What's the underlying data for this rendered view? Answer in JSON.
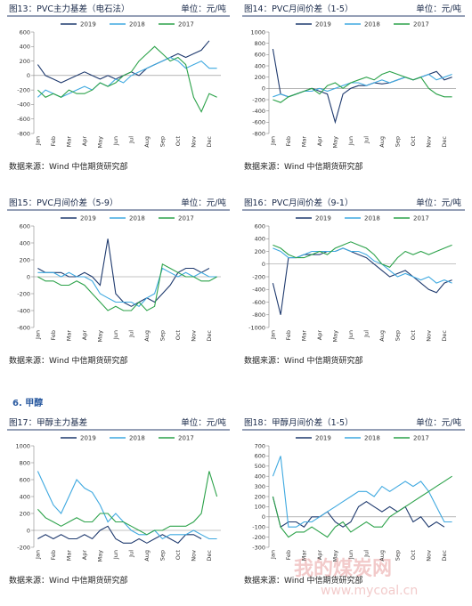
{
  "section_title": "6. 甲醇",
  "watermark": [
    "我的煤炭网",
    "www.mycoal.cn"
  ],
  "chart_data": [
    {
      "type": "line",
      "title": "图13：PVC主力基差（电石法）",
      "unit": "单位：元/吨",
      "source": "数据来源：Wind 中信期货研究部",
      "categories": [
        "Jan",
        null,
        "Feb",
        null,
        "Mar",
        null,
        "Apr",
        null,
        "May",
        null,
        "Jun",
        null,
        "Jul",
        null,
        "Aug",
        null,
        "Sep",
        null,
        "Oct",
        null,
        "Nov",
        null,
        "Dec",
        null
      ],
      "series": [
        {
          "name": "2019",
          "color": "#1f3a6e",
          "values": [
            150,
            0,
            -50,
            -100,
            -50,
            0,
            50,
            0,
            -50,
            0,
            -50,
            0,
            50,
            0,
            100,
            150,
            200,
            250,
            300,
            250,
            300,
            350,
            480,
            null
          ]
        },
        {
          "name": "2018",
          "color": "#3fa9e0",
          "values": [
            -300,
            -200,
            -250,
            -300,
            -250,
            -200,
            -150,
            -200,
            -100,
            -150,
            -50,
            -100,
            0,
            50,
            100,
            150,
            200,
            250,
            200,
            100,
            150,
            200,
            100,
            100
          ]
        },
        {
          "name": "2017",
          "color": "#2ca24a",
          "values": [
            -200,
            -300,
            -250,
            -300,
            -200,
            -250,
            -250,
            -200,
            -100,
            -150,
            -100,
            0,
            50,
            200,
            300,
            400,
            300,
            200,
            250,
            150,
            -300,
            -500,
            -250,
            -300
          ]
        }
      ],
      "ylim": [
        -800,
        600
      ],
      "yticks": [
        -800,
        -600,
        -400,
        -200,
        0,
        200,
        400,
        600
      ]
    },
    {
      "type": "line",
      "title": "图14：PVC月间价差（1-5）",
      "unit": "单位：元/吨",
      "source": "数据来源：Wind 中信期货研究部",
      "categories": [
        "Jan",
        null,
        "Feb",
        null,
        "Mar",
        null,
        "Apr",
        null,
        "May",
        null,
        "Jun",
        null,
        "Jul",
        null,
        "Aug",
        null,
        "Sep",
        null,
        "Oct",
        null,
        "Nov",
        null,
        "Dec",
        null
      ],
      "series": [
        {
          "name": "2019",
          "color": "#1f3a6e",
          "values": [
            700,
            -100,
            -150,
            -100,
            -50,
            0,
            -50,
            -100,
            -600,
            -100,
            0,
            50,
            50,
            100,
            80,
            100,
            150,
            200,
            150,
            200,
            250,
            300,
            150,
            200
          ]
        },
        {
          "name": "2018",
          "color": "#3fa9e0",
          "values": [
            -150,
            -100,
            -150,
            -100,
            -50,
            -50,
            0,
            -50,
            0,
            50,
            100,
            100,
            50,
            100,
            150,
            100,
            150,
            200,
            150,
            200,
            250,
            150,
            200,
            250
          ]
        },
        {
          "name": "2017",
          "color": "#2ca24a",
          "values": [
            -200,
            -250,
            -150,
            -100,
            -50,
            0,
            -100,
            50,
            100,
            0,
            100,
            150,
            200,
            150,
            250,
            300,
            250,
            200,
            150,
            200,
            0,
            -100,
            -150,
            -150
          ]
        }
      ],
      "ylim": [
        -800,
        1000
      ],
      "yticks": [
        -800,
        -600,
        -400,
        -200,
        0,
        200,
        400,
        600,
        800,
        1000
      ]
    },
    {
      "type": "line",
      "title": "图15：PVC月间价差（5-9）",
      "unit": "单位：元/吨",
      "source": "数据来源：Wind 中信期货研究部",
      "categories": [
        "Jan",
        null,
        "Feb",
        null,
        "Mar",
        null,
        "Apr",
        null,
        "May",
        null,
        "Jun",
        null,
        "Jul",
        null,
        "Aug",
        null,
        "Sep",
        null,
        "Oct",
        null,
        "Nov",
        null,
        "Dec",
        null
      ],
      "series": [
        {
          "name": "2019",
          "color": "#1f3a6e",
          "values": [
            100,
            50,
            50,
            50,
            0,
            0,
            50,
            0,
            -100,
            450,
            -200,
            -300,
            -350,
            -300,
            -250,
            -300,
            -200,
            -100,
            50,
            100,
            100,
            50,
            100,
            null
          ]
        },
        {
          "name": "2018",
          "color": "#3fa9e0",
          "values": [
            50,
            50,
            50,
            0,
            50,
            0,
            0,
            -50,
            -200,
            -250,
            -300,
            -300,
            -300,
            -350,
            -250,
            -200,
            100,
            50,
            0,
            50,
            0,
            50,
            0,
            0
          ]
        },
        {
          "name": "2017",
          "color": "#2ca24a",
          "values": [
            0,
            -50,
            -50,
            -100,
            -100,
            -50,
            -100,
            -200,
            -300,
            -400,
            -350,
            -400,
            -400,
            -300,
            -400,
            -350,
            150,
            100,
            50,
            0,
            0,
            -50,
            -50,
            0
          ]
        }
      ],
      "ylim": [
        -600,
        600
      ],
      "yticks": [
        -600,
        -400,
        -200,
        0,
        200,
        400,
        600
      ]
    },
    {
      "type": "line",
      "title": "图16：PVC月间价差（9-1）",
      "unit": "单位：元/吨",
      "source": "数据来源：Wind 中信期货研究部",
      "categories": [
        "Jan",
        null,
        "Feb",
        null,
        "Mar",
        null,
        "Apr",
        null,
        "May",
        null,
        "Jun",
        null,
        "Jul",
        null,
        "Aug",
        null,
        "Sep",
        null,
        "Oct",
        null,
        "Nov",
        null,
        "Dec",
        null
      ],
      "series": [
        {
          "name": "2019",
          "color": "#1f3a6e",
          "values": [
            -300,
            -800,
            100,
            100,
            150,
            150,
            150,
            200,
            200,
            250,
            200,
            150,
            100,
            0,
            -100,
            -200,
            -150,
            -100,
            -200,
            -300,
            -400,
            -450,
            -300,
            -250
          ]
        },
        {
          "name": "2018",
          "color": "#3fa9e0",
          "values": [
            250,
            200,
            100,
            100,
            150,
            200,
            200,
            200,
            200,
            250,
            200,
            200,
            150,
            50,
            0,
            -100,
            -200,
            -150,
            -200,
            -250,
            -200,
            -300,
            -250,
            -300
          ]
        },
        {
          "name": "2017",
          "color": "#2ca24a",
          "values": [
            300,
            250,
            150,
            100,
            100,
            150,
            200,
            150,
            250,
            300,
            350,
            300,
            250,
            150,
            0,
            -50,
            100,
            200,
            150,
            200,
            150,
            200,
            250,
            300
          ]
        }
      ],
      "ylim": [
        -1000,
        600
      ],
      "yticks": [
        -1000,
        -800,
        -600,
        -400,
        -200,
        0,
        200,
        400,
        600
      ]
    },
    {
      "type": "line",
      "title": "图17：甲醇主力基差",
      "unit": "单位：元/吨",
      "source": "数据来源：Wind 中信期货研究部",
      "categories": [
        "Jan",
        null,
        "Feb",
        null,
        "Mar",
        null,
        "Apr",
        null,
        "May",
        null,
        "Jun",
        null,
        "Jul",
        null,
        "Aug",
        null,
        "Sep",
        null,
        "Oct",
        null,
        "Nov",
        null,
        "Dec",
        null
      ],
      "series": [
        {
          "name": "2019",
          "color": "#1f3a6e",
          "values": [
            -100,
            -50,
            -100,
            -50,
            -100,
            -100,
            -50,
            -100,
            0,
            50,
            -100,
            -150,
            -150,
            -100,
            -150,
            -100,
            -50,
            -100,
            -150,
            -50,
            -50,
            -100,
            null,
            null
          ]
        },
        {
          "name": "2018",
          "color": "#3fa9e0",
          "values": [
            700,
            500,
            300,
            200,
            400,
            600,
            500,
            450,
            300,
            100,
            200,
            100,
            0,
            -50,
            -50,
            0,
            -100,
            -50,
            -50,
            -50,
            0,
            -50,
            -100,
            -100
          ]
        },
        {
          "name": "2017",
          "color": "#2ca24a",
          "values": [
            250,
            150,
            100,
            50,
            100,
            150,
            100,
            100,
            200,
            200,
            100,
            100,
            50,
            0,
            -50,
            0,
            0,
            50,
            50,
            50,
            100,
            200,
            700,
            400
          ]
        }
      ],
      "ylim": [
        -200,
        1000
      ],
      "yticks": [
        -200,
        0,
        200,
        400,
        600,
        800,
        1000
      ]
    },
    {
      "type": "line",
      "title": "图18：甲醇月间价差（1-5）",
      "unit": "单位：元/吨",
      "source": "数据来源：Wind 中信期货研究部",
      "categories": [
        "Jan",
        null,
        "Feb",
        null,
        "Mar",
        null,
        "Apr",
        null,
        "May",
        null,
        "Jun",
        null,
        "Jul",
        null,
        "Aug",
        null,
        "Sep",
        null,
        "Oct",
        null,
        "Nov",
        null,
        "Dec",
        null
      ],
      "series": [
        {
          "name": "2019",
          "color": "#1f3a6e",
          "values": [
            200,
            -100,
            -50,
            -50,
            -100,
            0,
            0,
            50,
            -50,
            -100,
            -50,
            100,
            150,
            100,
            50,
            100,
            50,
            100,
            -50,
            0,
            -100,
            -50,
            -100,
            null
          ]
        },
        {
          "name": "2018",
          "color": "#3fa9e0",
          "values": [
            400,
            600,
            -100,
            -100,
            -50,
            -50,
            0,
            50,
            100,
            150,
            200,
            250,
            250,
            200,
            300,
            250,
            300,
            350,
            300,
            350,
            250,
            100,
            -50,
            -50
          ]
        },
        {
          "name": "2017",
          "color": "#2ca24a",
          "values": [
            200,
            -100,
            -200,
            -150,
            -150,
            -100,
            -150,
            -200,
            -100,
            -50,
            -150,
            -100,
            -50,
            -100,
            -100,
            0,
            50,
            100,
            150,
            200,
            250,
            300,
            350,
            400
          ]
        }
      ],
      "ylim": [
        -300,
        700
      ],
      "yticks": [
        -300,
        -200,
        -100,
        0,
        100,
        200,
        300,
        400,
        500,
        600,
        700
      ]
    }
  ]
}
